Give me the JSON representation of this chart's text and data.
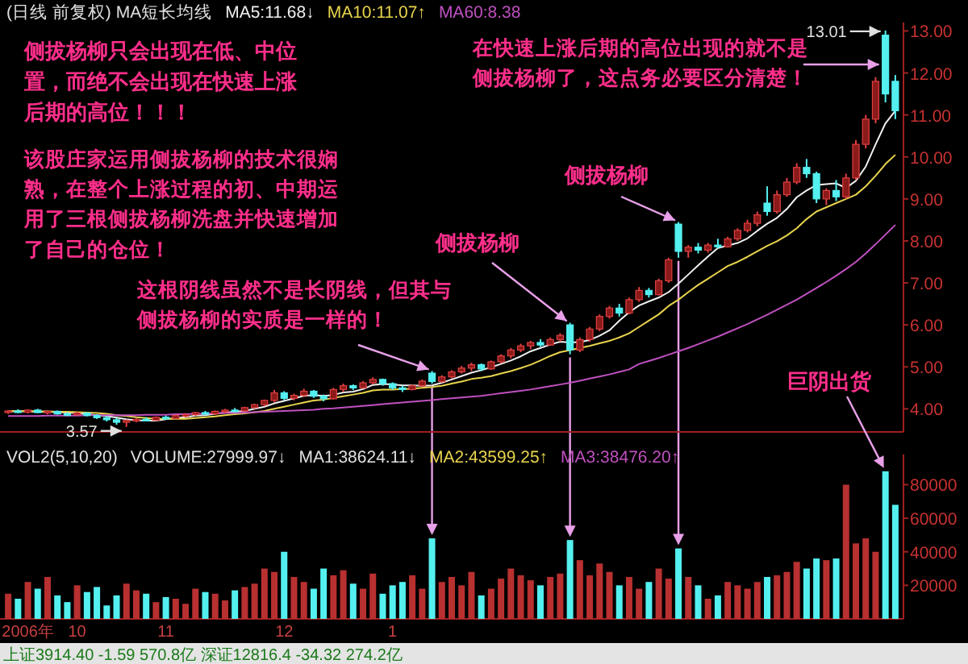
{
  "chart_data": [
    {
      "type": "candlestick",
      "title": "(日线 前复权) MA短长均线",
      "tick_labels": "y",
      "ylim": [
        3.45,
        13.2
      ],
      "yticks": [
        {
          "value": 4,
          "label": "4.00"
        },
        {
          "value": 5,
          "label": "5.00"
        },
        {
          "value": 6,
          "label": "6.00"
        },
        {
          "value": 7,
          "label": "7.00"
        },
        {
          "value": 8,
          "label": "8.00"
        },
        {
          "value": 9,
          "label": "9.00"
        },
        {
          "value": 10,
          "label": "10.00"
        },
        {
          "value": 11,
          "label": "11.00"
        },
        {
          "value": 12,
          "label": "12.00"
        },
        {
          "value": 13,
          "label": "13.00"
        }
      ],
      "categories": [
        null,
        null,
        null,
        null,
        null,
        null,
        null,
        null,
        null,
        null,
        null,
        null,
        null,
        null,
        null,
        null,
        null,
        null,
        null,
        null,
        null,
        null,
        null,
        null,
        null,
        null,
        null,
        null,
        null,
        null,
        null,
        null,
        null,
        null,
        null,
        null,
        null,
        null,
        null,
        null,
        null,
        null,
        null,
        null,
        null,
        null,
        null,
        null,
        null,
        null,
        null,
        null,
        null,
        null,
        null,
        null,
        null,
        null,
        null,
        null,
        null,
        null,
        null,
        null,
        null,
        null,
        null,
        null,
        null,
        null,
        null,
        null,
        null,
        null,
        null,
        null,
        null,
        null,
        null,
        null,
        null,
        null,
        null,
        null,
        null,
        null,
        null,
        null,
        null,
        null,
        null
      ],
      "ohlc": [
        [
          3.92,
          3.97,
          3.88,
          3.95
        ],
        [
          3.95,
          3.99,
          3.9,
          3.92
        ],
        [
          3.92,
          3.98,
          3.89,
          3.97
        ],
        [
          3.97,
          4.0,
          3.9,
          3.91
        ],
        [
          3.91,
          3.96,
          3.87,
          3.94
        ],
        [
          3.94,
          3.96,
          3.86,
          3.88
        ],
        [
          3.88,
          3.92,
          3.83,
          3.86
        ],
        [
          3.86,
          3.93,
          3.84,
          3.9
        ],
        [
          3.9,
          3.92,
          3.82,
          3.84
        ],
        [
          3.84,
          3.87,
          3.76,
          3.79
        ],
        [
          3.79,
          3.83,
          3.7,
          3.74
        ],
        [
          3.74,
          3.78,
          3.62,
          3.68
        ],
        [
          3.68,
          3.75,
          3.57,
          3.72
        ],
        [
          3.72,
          3.78,
          3.68,
          3.75
        ],
        [
          3.75,
          3.8,
          3.7,
          3.73
        ],
        [
          3.73,
          3.82,
          3.71,
          3.8
        ],
        [
          3.8,
          3.84,
          3.74,
          3.77
        ],
        [
          3.77,
          3.86,
          3.76,
          3.84
        ],
        [
          3.84,
          3.9,
          3.8,
          3.86
        ],
        [
          3.86,
          3.93,
          3.83,
          3.91
        ],
        [
          3.91,
          3.95,
          3.85,
          3.88
        ],
        [
          3.88,
          3.96,
          3.86,
          3.94
        ],
        [
          3.94,
          4.0,
          3.9,
          3.97
        ],
        [
          3.97,
          4.02,
          3.92,
          3.95
        ],
        [
          3.95,
          4.05,
          3.93,
          4.03
        ],
        [
          4.03,
          4.12,
          4.0,
          4.1
        ],
        [
          4.1,
          4.22,
          4.06,
          4.2
        ],
        [
          4.2,
          4.45,
          4.15,
          4.38
        ],
        [
          4.38,
          4.42,
          4.2,
          4.25
        ],
        [
          4.25,
          4.36,
          4.2,
          4.32
        ],
        [
          4.32,
          4.48,
          4.28,
          4.42
        ],
        [
          4.42,
          4.45,
          4.26,
          4.3
        ],
        [
          4.3,
          4.34,
          4.18,
          4.24
        ],
        [
          4.24,
          4.5,
          4.22,
          4.46
        ],
        [
          4.46,
          4.6,
          4.4,
          4.55
        ],
        [
          4.55,
          4.58,
          4.45,
          4.5
        ],
        [
          4.5,
          4.66,
          4.48,
          4.62
        ],
        [
          4.62,
          4.75,
          4.58,
          4.7
        ],
        [
          4.7,
          4.72,
          4.55,
          4.6
        ],
        [
          4.6,
          4.63,
          4.45,
          4.5
        ],
        [
          4.5,
          4.55,
          4.4,
          4.46
        ],
        [
          4.46,
          4.58,
          4.44,
          4.55
        ],
        [
          4.55,
          4.7,
          4.52,
          4.66
        ],
        [
          4.85,
          4.9,
          4.6,
          4.65
        ],
        [
          4.65,
          4.8,
          4.62,
          4.76
        ],
        [
          4.76,
          4.92,
          4.72,
          4.88
        ],
        [
          4.88,
          5.02,
          4.84,
          4.97
        ],
        [
          4.97,
          5.1,
          4.9,
          5.05
        ],
        [
          5.05,
          5.08,
          4.9,
          4.95
        ],
        [
          4.95,
          5.15,
          4.93,
          5.12
        ],
        [
          5.12,
          5.3,
          5.08,
          5.26
        ],
        [
          5.26,
          5.45,
          5.2,
          5.4
        ],
        [
          5.4,
          5.55,
          5.35,
          5.5
        ],
        [
          5.5,
          5.62,
          5.42,
          5.58
        ],
        [
          5.58,
          5.66,
          5.48,
          5.52
        ],
        [
          5.52,
          5.7,
          5.5,
          5.65
        ],
        [
          5.65,
          5.8,
          5.6,
          5.75
        ],
        [
          6.0,
          6.05,
          5.3,
          5.4
        ],
        [
          5.4,
          5.7,
          5.35,
          5.65
        ],
        [
          5.65,
          5.95,
          5.6,
          5.9
        ],
        [
          5.9,
          6.25,
          5.85,
          6.2
        ],
        [
          6.2,
          6.45,
          6.15,
          6.4
        ],
        [
          6.4,
          6.5,
          6.2,
          6.28
        ],
        [
          6.28,
          6.65,
          6.25,
          6.6
        ],
        [
          6.6,
          6.9,
          6.55,
          6.82
        ],
        [
          6.82,
          6.88,
          6.65,
          6.72
        ],
        [
          6.72,
          7.1,
          6.7,
          7.05
        ],
        [
          7.05,
          7.6,
          7.0,
          7.55
        ],
        [
          8.4,
          8.45,
          7.6,
          7.75
        ],
        [
          7.75,
          7.9,
          7.6,
          7.85
        ],
        [
          7.85,
          7.95,
          7.7,
          7.78
        ],
        [
          7.78,
          7.95,
          7.72,
          7.9
        ],
        [
          7.9,
          8.05,
          7.82,
          7.86
        ],
        [
          7.86,
          8.1,
          7.84,
          8.05
        ],
        [
          8.05,
          8.3,
          8.0,
          8.25
        ],
        [
          8.25,
          8.5,
          8.2,
          8.42
        ],
        [
          8.42,
          8.7,
          8.35,
          8.62
        ],
        [
          8.9,
          9.3,
          8.6,
          8.7
        ],
        [
          8.7,
          9.2,
          8.65,
          9.1
        ],
        [
          9.1,
          9.5,
          9.05,
          9.4
        ],
        [
          9.4,
          9.85,
          9.35,
          9.75
        ],
        [
          9.75,
          9.95,
          9.5,
          9.6
        ],
        [
          9.6,
          9.65,
          8.9,
          9.0
        ],
        [
          9.0,
          9.25,
          8.85,
          9.2
        ],
        [
          9.2,
          9.45,
          8.95,
          9.05
        ],
        [
          9.05,
          9.6,
          9.0,
          9.5
        ],
        [
          9.5,
          10.4,
          9.45,
          10.3
        ],
        [
          10.3,
          11.0,
          10.2,
          10.9
        ],
        [
          10.9,
          11.9,
          10.8,
          11.8
        ],
        [
          12.9,
          13.01,
          11.3,
          11.5
        ],
        [
          11.8,
          11.95,
          10.9,
          11.1
        ]
      ],
      "series": [
        {
          "name": "MA5:11.68↓",
          "type": "line",
          "color": "#f0f0f0",
          "values": [
            3.94,
            3.94,
            3.94,
            3.93,
            3.93,
            3.92,
            3.91,
            3.9,
            3.87,
            3.85,
            3.83,
            3.79,
            3.75,
            3.73,
            3.72,
            3.72,
            3.75,
            3.78,
            3.8,
            3.84,
            3.85,
            3.88,
            3.91,
            3.93,
            3.95,
            4.0,
            4.05,
            4.13,
            4.19,
            4.25,
            4.31,
            4.33,
            4.31,
            4.33,
            4.39,
            4.41,
            4.47,
            4.57,
            4.59,
            4.58,
            4.56,
            4.56,
            4.55,
            4.56,
            4.62,
            4.7,
            4.78,
            4.86,
            4.92,
            4.99,
            5.07,
            5.15,
            5.25,
            5.37,
            5.45,
            5.53,
            5.6,
            5.58,
            5.59,
            5.64,
            5.74,
            5.87,
            6.1,
            6.3,
            6.46,
            6.56,
            6.65,
            6.78,
            6.98,
            7.2,
            7.42,
            7.63,
            7.83,
            7.89,
            7.95,
            8.06,
            8.24,
            8.41,
            8.55,
            8.76,
            9.04,
            9.2,
            9.33,
            9.35,
            9.37,
            9.26,
            9.43,
            9.77,
            10.3,
            10.8,
            11.1
          ]
        },
        {
          "name": "MA10:11.07↑",
          "type": "line",
          "color": "#e8d44d",
          "values": [
            3.95,
            3.95,
            3.95,
            3.94,
            3.94,
            3.93,
            3.93,
            3.92,
            3.91,
            3.9,
            3.88,
            3.85,
            3.83,
            3.8,
            3.78,
            3.76,
            3.76,
            3.76,
            3.76,
            3.78,
            3.8,
            3.82,
            3.85,
            3.87,
            3.89,
            3.92,
            3.95,
            4.0,
            4.05,
            4.1,
            4.15,
            4.2,
            4.22,
            4.26,
            4.3,
            4.34,
            4.38,
            4.44,
            4.46,
            4.46,
            4.47,
            4.48,
            4.5,
            4.52,
            4.55,
            4.6,
            4.65,
            4.71,
            4.74,
            4.78,
            4.84,
            4.9,
            4.97,
            5.05,
            5.15,
            5.26,
            5.35,
            5.4,
            5.45,
            5.5,
            5.56,
            5.62,
            5.7,
            5.8,
            5.95,
            6.1,
            6.25,
            6.45,
            6.6,
            6.78,
            6.95,
            7.1,
            7.25,
            7.4,
            7.5,
            7.62,
            7.75,
            7.88,
            7.99,
            8.13,
            8.3,
            8.52,
            8.7,
            8.8,
            8.9,
            9.0,
            9.1,
            9.3,
            9.55,
            9.83,
            10.05
          ]
        },
        {
          "name": "MA60:8.38",
          "type": "line",
          "color": "#c050c0",
          "values": [
            3.83,
            3.83,
            3.83,
            3.83,
            3.84,
            3.84,
            3.84,
            3.84,
            3.85,
            3.85,
            3.85,
            3.85,
            3.85,
            3.85,
            3.86,
            3.86,
            3.86,
            3.87,
            3.87,
            3.88,
            3.88,
            3.89,
            3.9,
            3.9,
            3.91,
            3.92,
            3.93,
            3.94,
            3.95,
            3.96,
            3.97,
            3.98,
            4.0,
            4.01,
            4.03,
            4.05,
            4.07,
            4.09,
            4.11,
            4.13,
            4.15,
            4.17,
            4.19,
            4.21,
            4.23,
            4.25,
            4.27,
            4.29,
            4.31,
            4.34,
            4.37,
            4.4,
            4.43,
            4.46,
            4.5,
            4.54,
            4.58,
            4.62,
            4.67,
            4.72,
            4.77,
            4.82,
            4.88,
            4.94,
            5.07,
            5.14,
            5.21,
            5.29,
            5.37,
            5.45,
            5.54,
            5.63,
            5.72,
            5.82,
            5.92,
            6.02,
            6.13,
            6.24,
            6.36,
            6.48,
            6.6,
            6.74,
            6.88,
            7.02,
            7.17,
            7.33,
            7.5,
            7.7,
            7.92,
            8.15,
            8.38
          ]
        }
      ],
      "annotations": [
        "3.57",
        "13.01",
        "侧拔杨柳只会出现在低、中位置，而绝不会出现在快速上涨后期的高位！！！",
        "该股庄家运用侧拔杨柳的技术很娴熟，在整个上涨过程的初、中期运用了三根侧拔杨柳洗盘并快速增加了自己的仓位！",
        "这根阴线虽然不是长阴线，但其与侧拔杨柳的实质是一样的！",
        "侧拔杨柳",
        "侧拔杨柳",
        "在快速上涨后期的高位出现的就不是侧拔杨柳了，这点务必要区分清楚！"
      ]
    },
    {
      "type": "bar",
      "title": "VOL2(5,10,20)",
      "ylim": [
        0,
        98000
      ],
      "yticks": [
        20000,
        40000,
        60000,
        80000
      ],
      "categories": [
        null,
        null,
        "2006年",
        null,
        null,
        null,
        null,
        "10",
        null,
        null,
        null,
        null,
        null,
        null,
        null,
        null,
        "11",
        null,
        null,
        null,
        null,
        null,
        null,
        null,
        null,
        null,
        null,
        null,
        "12",
        null,
        null,
        null,
        null,
        null,
        null,
        null,
        null,
        null,
        null,
        "1",
        null,
        null,
        null,
        null,
        null,
        null,
        null,
        null,
        null,
        null,
        null,
        null,
        null,
        null,
        null,
        null,
        null,
        null,
        null,
        null,
        null,
        null,
        null,
        null,
        null,
        null,
        null,
        null,
        null,
        null,
        null,
        null,
        null,
        null,
        null,
        null,
        null,
        null,
        null,
        null,
        null,
        null,
        null,
        null,
        null,
        null,
        null,
        null,
        null,
        null,
        null
      ],
      "values": [
        15000,
        12000,
        22000,
        18000,
        25000,
        14000,
        10000,
        20000,
        16000,
        19000,
        8000,
        14000,
        21000,
        17000,
        15000,
        10000,
        13000,
        12000,
        9000,
        18000,
        16000,
        15000,
        11000,
        17000,
        19000,
        21000,
        30000,
        28000,
        40000,
        25000,
        22000,
        18000,
        30000,
        26000,
        29000,
        21000,
        18000,
        27000,
        15000,
        20000,
        22000,
        26000,
        18000,
        48000,
        22000,
        25000,
        20000,
        28000,
        14000,
        18000,
        24000,
        30000,
        26000,
        23000,
        20000,
        25000,
        27000,
        47000,
        35000,
        26000,
        33000,
        28000,
        20000,
        25000,
        18000,
        22000,
        30000,
        24000,
        42000,
        25000,
        20000,
        12000,
        14000,
        22000,
        20000,
        18000,
        22000,
        25000,
        26000,
        28000,
        34000,
        30000,
        36000,
        35000,
        36000,
        80000,
        45000,
        48000,
        40000,
        88000,
        68000
      ],
      "colors": [
        "#b83030",
        "#54f0f0",
        "#b83030",
        "#54f0f0",
        "#b83030",
        "#54f0f0",
        "#54f0f0",
        "#b83030",
        "#54f0f0",
        "#54f0f0",
        "#54f0f0",
        "#54f0f0",
        "#b83030",
        "#b83030",
        "#54f0f0",
        "#b83030",
        "#54f0f0",
        "#b83030",
        "#b83030",
        "#b83030",
        "#54f0f0",
        "#b83030",
        "#b83030",
        "#54f0f0",
        "#b83030",
        "#b83030",
        "#b83030",
        "#b83030",
        "#54f0f0",
        "#b83030",
        "#b83030",
        "#54f0f0",
        "#54f0f0",
        "#b83030",
        "#b83030",
        "#54f0f0",
        "#b83030",
        "#b83030",
        "#54f0f0",
        "#54f0f0",
        "#54f0f0",
        "#b83030",
        "#b83030",
        "#54f0f0",
        "#b83030",
        "#b83030",
        "#b83030",
        "#b83030",
        "#54f0f0",
        "#b83030",
        "#b83030",
        "#b83030",
        "#b83030",
        "#b83030",
        "#54f0f0",
        "#b83030",
        "#b83030",
        "#54f0f0",
        "#b83030",
        "#b83030",
        "#b83030",
        "#b83030",
        "#54f0f0",
        "#b83030",
        "#b83030",
        "#54f0f0",
        "#b83030",
        "#b83030",
        "#54f0f0",
        "#b83030",
        "#54f0f0",
        "#b83030",
        "#54f0f0",
        "#b83030",
        "#b83030",
        "#b83030",
        "#b83030",
        "#54f0f0",
        "#b83030",
        "#b83030",
        "#b83030",
        "#54f0f0",
        "#54f0f0",
        "#b83030",
        "#54f0f0",
        "#b83030",
        "#b83030",
        "#b83030",
        "#b83030",
        "#54f0f0",
        "#54f0f0"
      ],
      "annotations": [
        "VOLUME:27999.97↓",
        "MA1:38624.11↓",
        "MA2:43599.25↑",
        "MA3:38476.20↑",
        "巨阴出货",
        "上证3914.40 -1.59 570.8亿 深证12816.4 -34.32 274.2亿"
      ]
    }
  ]
}
